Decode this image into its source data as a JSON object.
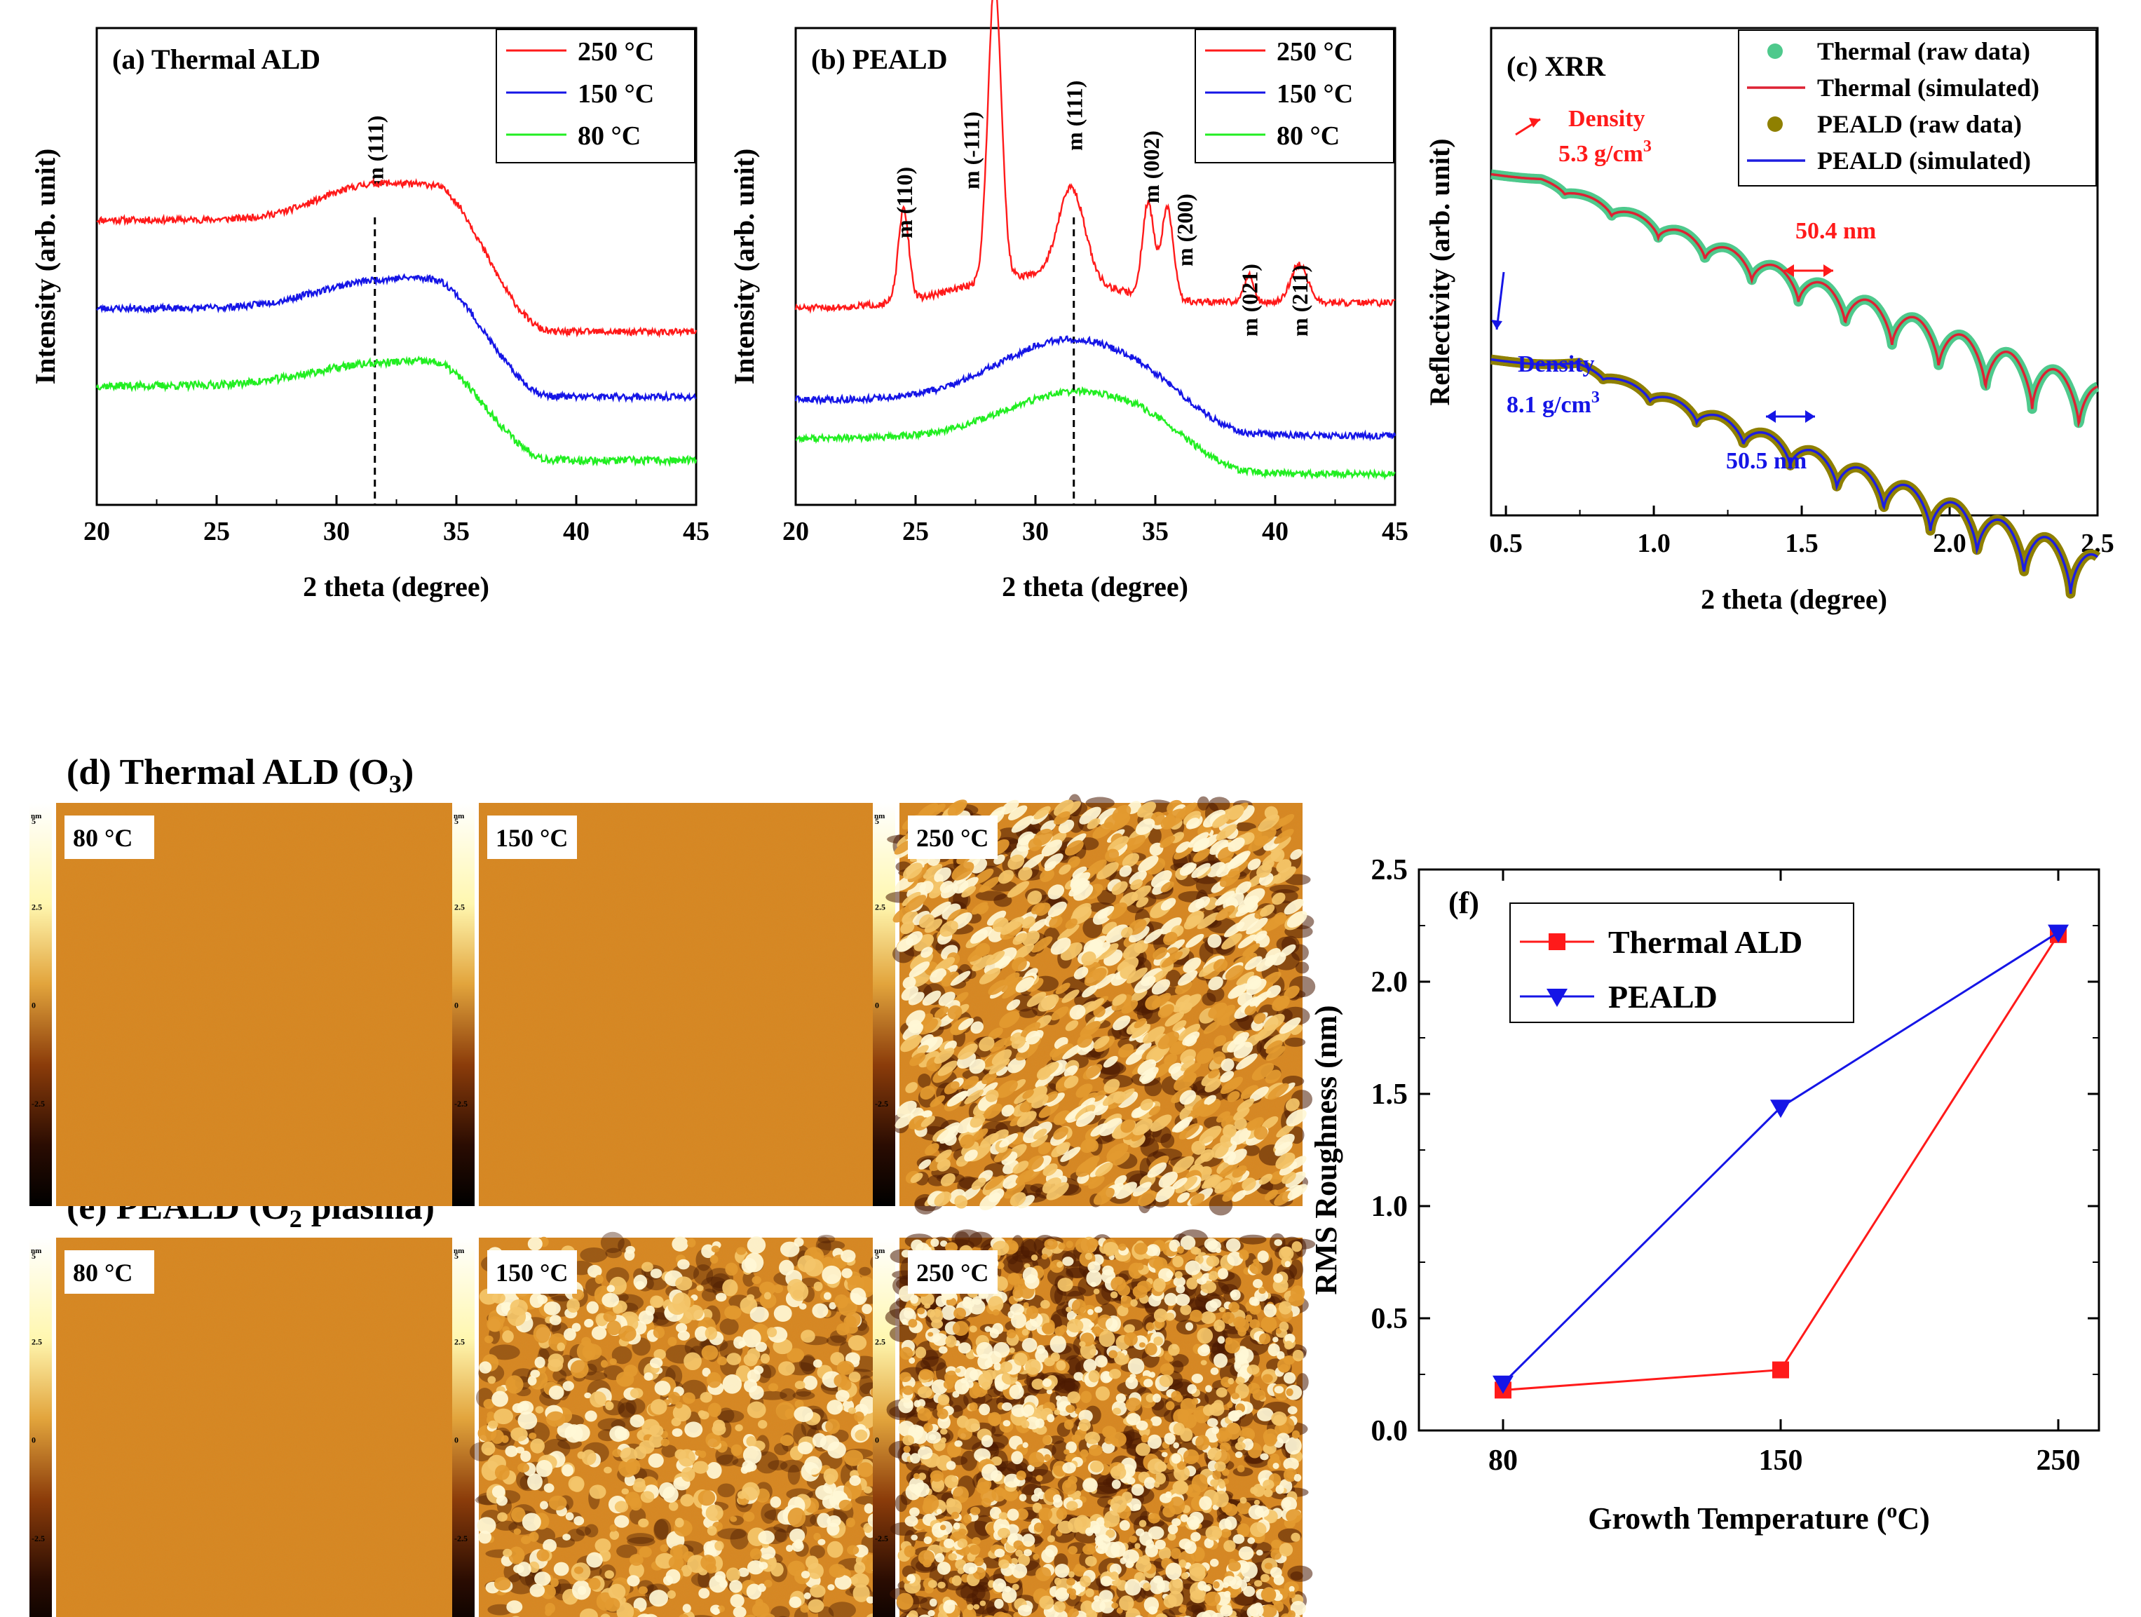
{
  "figure_colors": {
    "red": "#ff1a1a",
    "blue": "#1515e6",
    "green": "#22ee22",
    "teal": "#4ec98c",
    "olive": "#8f8000",
    "crimson": "#dd2233",
    "navy": "#1e1ee0",
    "afm_base": "#d9851f"
  },
  "chart_data": [
    {
      "id": "a",
      "type": "line",
      "panel_label": "(a) Thermal ALD",
      "xlabel": "2 theta (degree)",
      "ylabel": "Intensity (arb. unit)",
      "xlim": [
        20,
        45
      ],
      "xticks": [
        "20",
        "25",
        "30",
        "35",
        "40",
        "45"
      ],
      "legend_position": "top-right",
      "peak_marker": {
        "x": 31.6,
        "label": "m (111)"
      },
      "series": [
        {
          "name": "250 °C",
          "color": "#ff1a1a",
          "baseline": 0.72,
          "end": 0.315,
          "peaks": [
            [
              31.7,
              0.13,
              2.3
            ],
            [
              34.8,
              0.06,
              1.2
            ]
          ],
          "noise": 0.012,
          "seed": 11
        },
        {
          "name": "150 °C",
          "color": "#1515e6",
          "baseline": 0.4,
          "end": 0.08,
          "peaks": [
            [
              31.8,
              0.1,
              2.6
            ],
            [
              34.5,
              0.04,
              1.3
            ]
          ],
          "noise": 0.012,
          "seed": 23
        },
        {
          "name": "80 °C",
          "color": "#22ee22",
          "baseline": 0.12,
          "end": -0.15,
          "peaks": [
            [
              31.8,
              0.08,
              2.8
            ],
            [
              34.5,
              0.03,
              1.3
            ]
          ],
          "noise": 0.014,
          "seed": 37
        }
      ]
    },
    {
      "id": "b",
      "type": "line",
      "panel_label": "(b) PEALD",
      "xlabel": "2 theta (degree)",
      "ylabel": "Intensity (arb. unit)",
      "xlim": [
        20,
        45
      ],
      "xticks": [
        "20",
        "25",
        "30",
        "35",
        "40",
        "45"
      ],
      "legend_position": "top-right",
      "peak_marker": {
        "x": 31.6,
        "label": "m (111)"
      },
      "peak_labels": [
        {
          "x": 24.5,
          "label": "m (110)"
        },
        {
          "x": 27.3,
          "label": "m (-111)"
        },
        {
          "x": 31.6,
          "label": "m (111)"
        },
        {
          "x": 34.8,
          "label": "m (002)"
        },
        {
          "x": 36.2,
          "label": "m (200)"
        },
        {
          "x": 38.9,
          "label": "m (021)"
        },
        {
          "x": 41.0,
          "label": "m (211)"
        }
      ],
      "series": [
        {
          "name": "250 °C",
          "color": "#ff1a1a",
          "baseline": 0.4,
          "end": 0.42,
          "peaks": [
            [
              24.5,
              0.33,
              0.22
            ],
            [
              28.3,
              1.08,
              0.28
            ],
            [
              31.5,
              0.33,
              0.55
            ],
            [
              30.0,
              0.12,
              3.2
            ],
            [
              34.7,
              0.34,
              0.24
            ],
            [
              35.5,
              0.33,
              0.25
            ],
            [
              38.9,
              0.1,
              0.2
            ],
            [
              41.0,
              0.14,
              0.35
            ]
          ],
          "noise": 0.012,
          "seed": 51
        },
        {
          "name": "150 °C",
          "color": "#1515e6",
          "baseline": 0.07,
          "end": -0.06,
          "peaks": [
            [
              31.5,
              0.22,
              3.0
            ]
          ],
          "noise": 0.012,
          "seed": 63
        },
        {
          "name": "80 °C",
          "color": "#22ee22",
          "baseline": -0.07,
          "end": -0.2,
          "peaks": [
            [
              31.8,
              0.17,
              3.0
            ]
          ],
          "noise": 0.012,
          "seed": 77
        }
      ]
    },
    {
      "id": "c",
      "type": "line",
      "panel_label": "(c) XRR",
      "xlabel": "2 theta (degree)",
      "ylabel": "Reflectivity (arb. unit)",
      "xlim": [
        0.45,
        2.5
      ],
      "xticks": [
        "0.5",
        "1.0",
        "1.5",
        "2.0",
        "2.5"
      ],
      "legend_position": "top-right",
      "series": [
        {
          "name": "Thermal (raw data)",
          "style": "dots",
          "color": "#4ec98c",
          "curve": "thermal"
        },
        {
          "name": "Thermal (simulated)",
          "style": "line",
          "color": "#dd2233",
          "curve": "thermal"
        },
        {
          "name": "PEALD (raw data)",
          "style": "dots",
          "color": "#8f8000",
          "curve": "peald"
        },
        {
          "name": "PEALD (simulated)",
          "style": "line",
          "color": "#1e1ee0",
          "curve": "peald"
        }
      ],
      "curves": {
        "thermal": {
          "start": 0.7,
          "plateau_end": 0.62,
          "slope": 0.075,
          "fringe_period": 0.158,
          "fringe_depth": [
            0.01,
            0.1
          ]
        },
        "peald": {
          "start": 0.32,
          "plateau_end": 0.75,
          "slope": 0.075,
          "fringe_period": 0.158,
          "fringe_depth": [
            0.01,
            0.1
          ]
        }
      },
      "annotations": {
        "thermal_density": [
          "Density",
          "5.3 g/cm",
          "3"
        ],
        "peald_density": [
          "Density",
          "8.1 g/cm",
          "3"
        ],
        "thermal_thickness": "50.4 nm",
        "peald_thickness": "50.5 nm"
      }
    },
    {
      "id": "f",
      "type": "line",
      "panel_label": "(f)",
      "xlabel": "Growth Temperature (",
      "xlabel_sup": "o",
      "xlabel_tail": "C)",
      "ylabel": "RMS Roughness (nm)",
      "categories": [
        "80",
        "150",
        "250"
      ],
      "ylim": [
        0,
        2.5
      ],
      "yticks": [
        "0.0",
        "0.5",
        "1.0",
        "1.5",
        "2.0",
        "2.5"
      ],
      "legend_position": "top-left",
      "series": [
        {
          "name": "Thermal ALD",
          "color": "#ff1a1a",
          "marker": "square",
          "values": [
            0.18,
            0.27,
            2.21
          ]
        },
        {
          "name": "PEALD",
          "color": "#1515e6",
          "marker": "triangle-down",
          "values": [
            0.21,
            1.44,
            2.22
          ]
        }
      ]
    }
  ],
  "afm": {
    "row_d": {
      "title": "(d) Thermal ALD (O",
      "sub": "3",
      "tail": ")"
    },
    "row_e": {
      "title": "(e) PEALD (O",
      "sub": "2",
      "tail": " plasma)"
    },
    "colorbar_unit": "nm",
    "colorbar_ticks": [
      "5",
      "2.5",
      "0",
      "-2.5",
      "-5"
    ],
    "images": [
      {
        "row": "d",
        "label": "80 °C",
        "roughness": 0.08,
        "grain": "none",
        "seed": 101
      },
      {
        "row": "d",
        "label": "150 °C",
        "roughness": 0.1,
        "grain": "none",
        "seed": 202
      },
      {
        "row": "d",
        "label": "250 °C",
        "roughness": 1.0,
        "grain": "elongated",
        "seed": 303
      },
      {
        "row": "e",
        "label": "80 °C",
        "roughness": 0.12,
        "grain": "none",
        "seed": 404
      },
      {
        "row": "e",
        "label": "150 °C",
        "roughness": 0.75,
        "grain": "round",
        "seed": 505
      },
      {
        "row": "e",
        "label": "250 °C",
        "roughness": 1.0,
        "grain": "round-dense",
        "seed": 606
      }
    ]
  }
}
